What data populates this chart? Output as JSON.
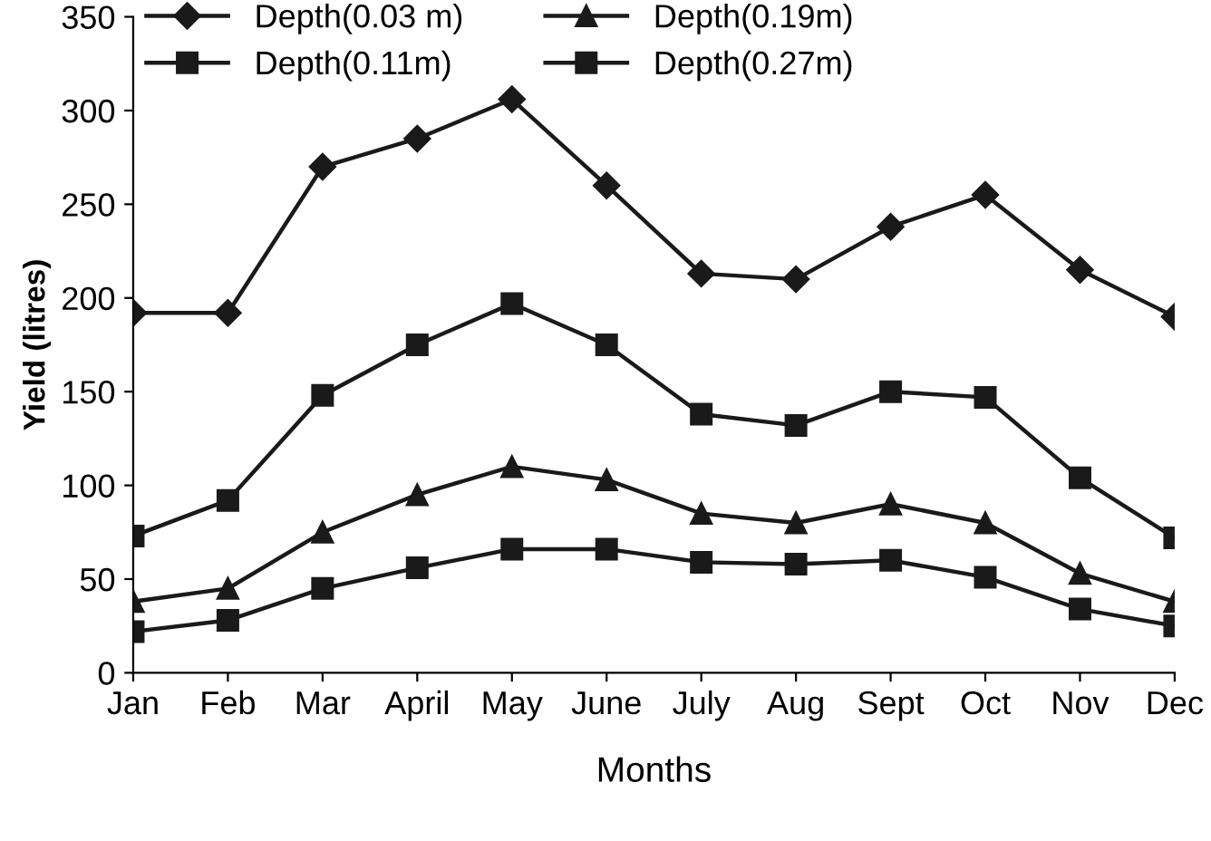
{
  "chart_data": {
    "type": "line",
    "xlabel": "Months",
    "ylabel": "Yield (litres)",
    "categories": [
      "Jan",
      "Feb",
      "Mar",
      "April",
      "May",
      "June",
      "July",
      "Aug",
      "Sept",
      "Oct",
      "Nov",
      "Dec"
    ],
    "series": [
      {
        "name": "Depth(0.03 m)",
        "color": "#1a1a1a",
        "marker": "diamond",
        "values": [
          192,
          192,
          270,
          285,
          306,
          260,
          213,
          210,
          238,
          255,
          215,
          190
        ]
      },
      {
        "name": "Depth(0.11m)",
        "color": "#1a1a1a",
        "marker": "square",
        "values": [
          73,
          92,
          148,
          175,
          197,
          175,
          138,
          132,
          150,
          147,
          104,
          72
        ]
      },
      {
        "name": "Depth(0.19m)",
        "color": "#1a1a1a",
        "marker": "triangle",
        "values": [
          38,
          45,
          75,
          95,
          110,
          103,
          85,
          80,
          90,
          80,
          53,
          38
        ]
      },
      {
        "name": "Depth(0.27m)",
        "color": "#1a1a1a",
        "marker": "square",
        "values": [
          22,
          28,
          45,
          56,
          66,
          66,
          59,
          58,
          60,
          51,
          34,
          25
        ]
      }
    ],
    "ylim": [
      0,
      350
    ],
    "yticks": [
      0,
      50,
      100,
      150,
      200,
      250,
      300,
      350
    ],
    "grid": false,
    "legend": "top left",
    "line_style": "solid"
  }
}
